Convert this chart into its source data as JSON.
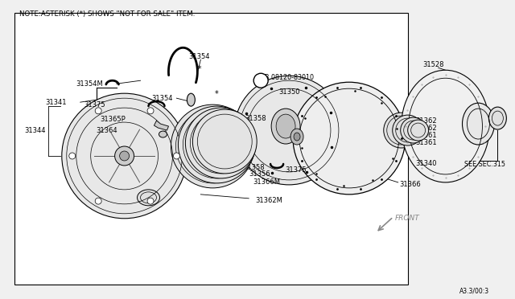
{
  "bg": "#f0f0f0",
  "white": "#ffffff",
  "black": "#000000",
  "gray": "#999999",
  "note_text": "NOTE:ASTERISK (*) SHOWS \"NOT FOR SALE\" ITEM.",
  "fig_num": "A3.3/00:3",
  "see_sec": "SEE SEC.315",
  "bolt_label": "B 08120-83010",
  "front_label": "FRONT"
}
